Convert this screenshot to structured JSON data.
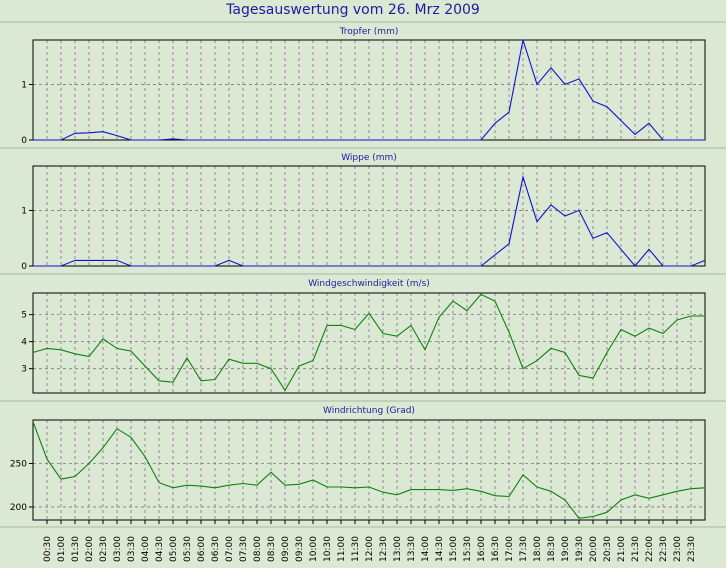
{
  "page": {
    "title": "Tagesauswertung vom 26. Mrz 2009",
    "background": "#dbe8d3",
    "title_color": "#1c1ca0",
    "line_color_rain": "#1010d0",
    "line_color_wind": "#108010"
  },
  "x_ticks": [
    "00:30",
    "01:00",
    "01:30",
    "02:00",
    "02:30",
    "03:00",
    "03:30",
    "04:00",
    "04:30",
    "05:00",
    "05:30",
    "06:00",
    "06:30",
    "07:00",
    "07:30",
    "08:00",
    "08:30",
    "09:00",
    "09:30",
    "10:00",
    "10:30",
    "11:00",
    "11:30",
    "12:00",
    "12:30",
    "13:00",
    "13:30",
    "14:00",
    "14:30",
    "15:00",
    "15:30",
    "16:00",
    "16:30",
    "17:00",
    "17:30",
    "18:00",
    "18:30",
    "19:00",
    "19:30",
    "20:00",
    "20:30",
    "21:00",
    "21:30",
    "22:00",
    "22:30",
    "23:00",
    "23:30"
  ],
  "chart_data": [
    {
      "type": "line",
      "title": "Tropfer (mm)",
      "ylim": [
        0,
        1.8
      ],
      "yticks": [
        0,
        1
      ],
      "x": [
        "00:00",
        "00:30",
        "01:00",
        "01:30",
        "02:00",
        "02:30",
        "03:00",
        "03:30",
        "04:00",
        "04:30",
        "05:00",
        "05:30",
        "06:00",
        "06:30",
        "07:00",
        "07:30",
        "08:00",
        "08:30",
        "09:00",
        "09:30",
        "10:00",
        "10:30",
        "11:00",
        "11:30",
        "12:00",
        "12:30",
        "13:00",
        "13:30",
        "14:00",
        "14:30",
        "15:00",
        "15:30",
        "16:00",
        "16:30",
        "17:00",
        "17:30",
        "18:00",
        "18:30",
        "19:00",
        "19:30",
        "20:00",
        "20:30",
        "21:00",
        "21:30",
        "22:00",
        "22:30",
        "23:00",
        "23:30",
        "24:00"
      ],
      "values": [
        0,
        0,
        0,
        0.12,
        0.13,
        0.15,
        0.08,
        0,
        0,
        0,
        0.02,
        0,
        0,
        0,
        0,
        0,
        0,
        0,
        0,
        0,
        0,
        0,
        0,
        0,
        0,
        0,
        0,
        0,
        0,
        0,
        0,
        0,
        0,
        0.3,
        0.5,
        1.8,
        1.0,
        1.3,
        1.0,
        1.1,
        0.7,
        0.6,
        0.35,
        0.1,
        0.3,
        0,
        0,
        0,
        0
      ]
    },
    {
      "type": "line",
      "title": "Wippe (mm)",
      "ylim": [
        0,
        1.8
      ],
      "yticks": [
        0,
        1
      ],
      "x": [
        "00:00",
        "00:30",
        "01:00",
        "01:30",
        "02:00",
        "02:30",
        "03:00",
        "03:30",
        "04:00",
        "04:30",
        "05:00",
        "05:30",
        "06:00",
        "06:30",
        "07:00",
        "07:30",
        "08:00",
        "08:30",
        "09:00",
        "09:30",
        "10:00",
        "10:30",
        "11:00",
        "11:30",
        "12:00",
        "12:30",
        "13:00",
        "13:30",
        "14:00",
        "14:30",
        "15:00",
        "15:30",
        "16:00",
        "16:30",
        "17:00",
        "17:30",
        "18:00",
        "18:30",
        "19:00",
        "19:30",
        "20:00",
        "20:30",
        "21:00",
        "21:30",
        "22:00",
        "22:30",
        "23:00",
        "23:30",
        "24:00"
      ],
      "values": [
        0,
        0,
        0,
        0.1,
        0.1,
        0.1,
        0.1,
        0,
        0,
        0,
        0,
        0,
        0,
        0,
        0.1,
        0,
        0,
        0,
        0,
        0,
        0,
        0,
        0,
        0,
        0,
        0,
        0,
        0,
        0,
        0,
        0,
        0,
        0,
        0.2,
        0.4,
        1.6,
        0.8,
        1.1,
        0.9,
        1.0,
        0.5,
        0.6,
        0.3,
        0,
        0.3,
        0,
        0,
        0,
        0.1
      ]
    },
    {
      "type": "line",
      "title": "Windgeschwindigkeit (m/s)",
      "ylim": [
        2.1,
        5.8
      ],
      "yticks": [
        3,
        4,
        5
      ],
      "x": [
        "00:00",
        "00:30",
        "01:00",
        "01:30",
        "02:00",
        "02:30",
        "03:00",
        "03:30",
        "04:00",
        "04:30",
        "05:00",
        "05:30",
        "06:00",
        "06:30",
        "07:00",
        "07:30",
        "08:00",
        "08:30",
        "09:00",
        "09:30",
        "10:00",
        "10:30",
        "11:00",
        "11:30",
        "12:00",
        "12:30",
        "13:00",
        "13:30",
        "14:00",
        "14:30",
        "15:00",
        "15:30",
        "16:00",
        "16:30",
        "17:00",
        "17:30",
        "18:00",
        "18:30",
        "19:00",
        "19:30",
        "20:00",
        "20:30",
        "21:00",
        "21:30",
        "22:00",
        "22:30",
        "23:00",
        "23:30",
        "24:00"
      ],
      "values": [
        3.6,
        3.75,
        3.7,
        3.55,
        3.45,
        4.1,
        3.75,
        3.65,
        3.1,
        2.55,
        2.5,
        3.4,
        2.55,
        2.6,
        3.35,
        3.2,
        3.2,
        3.0,
        2.2,
        3.1,
        3.3,
        4.6,
        4.6,
        4.45,
        5.05,
        4.3,
        4.2,
        4.6,
        3.7,
        4.9,
        5.5,
        5.15,
        5.75,
        5.5,
        4.35,
        3.0,
        3.3,
        3.75,
        3.6,
        2.75,
        2.65,
        3.6,
        4.45,
        4.2,
        4.5,
        4.3,
        4.8,
        4.95,
        4.95
      ]
    },
    {
      "type": "line",
      "title": "Windrichtung (Grad)",
      "ylim": [
        185,
        300
      ],
      "yticks": [
        200,
        250
      ],
      "x": [
        "00:00",
        "00:30",
        "01:00",
        "01:30",
        "02:00",
        "02:30",
        "03:00",
        "03:30",
        "04:00",
        "04:30",
        "05:00",
        "05:30",
        "06:00",
        "06:30",
        "07:00",
        "07:30",
        "08:00",
        "08:30",
        "09:00",
        "09:30",
        "10:00",
        "10:30",
        "11:00",
        "11:30",
        "12:00",
        "12:30",
        "13:00",
        "13:30",
        "14:00",
        "14:30",
        "15:00",
        "15:30",
        "16:00",
        "16:30",
        "17:00",
        "17:30",
        "18:00",
        "18:30",
        "19:00",
        "19:30",
        "20:00",
        "20:30",
        "21:00",
        "21:30",
        "22:00",
        "22:30",
        "23:00",
        "23:30",
        "24:00"
      ],
      "values": [
        298,
        255,
        232,
        235,
        250,
        268,
        290,
        280,
        258,
        228,
        222,
        225,
        224,
        222,
        225,
        227,
        225,
        240,
        225,
        226,
        231,
        223,
        223,
        222,
        223,
        217,
        214,
        220,
        220,
        220,
        219,
        221,
        218,
        213,
        212,
        237,
        223,
        218,
        208,
        187,
        189,
        194,
        208,
        214,
        210,
        214,
        218,
        221,
        222
      ]
    }
  ]
}
